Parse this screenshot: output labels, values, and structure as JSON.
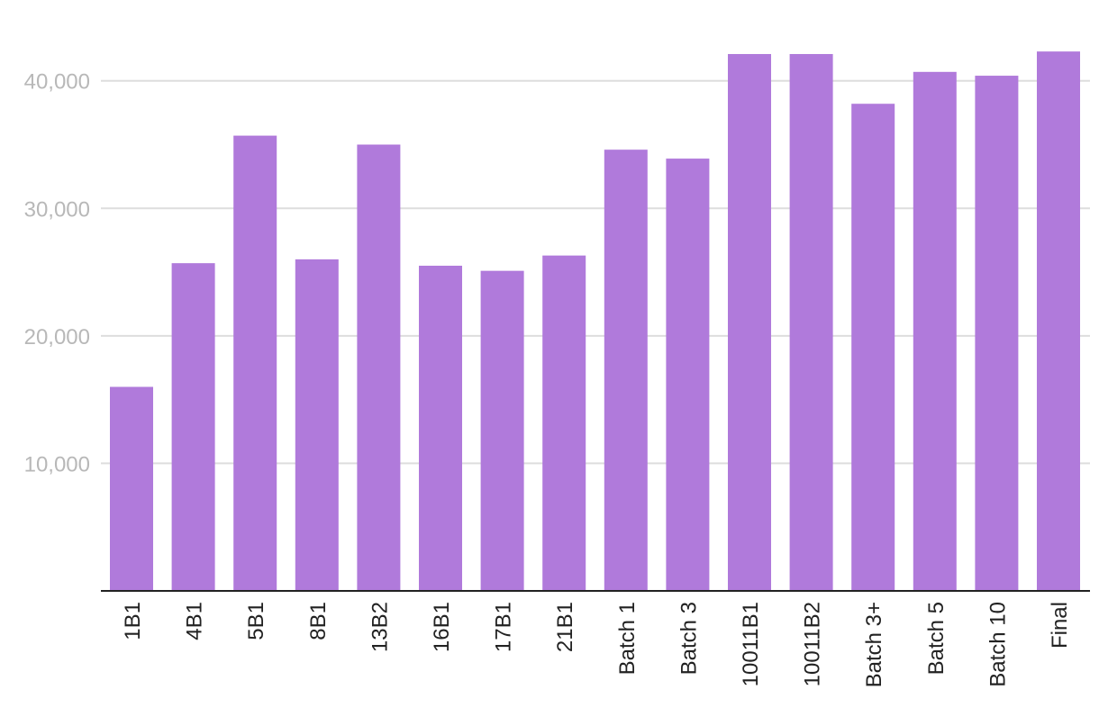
{
  "chart_data": {
    "type": "bar",
    "title": "",
    "xlabel": "",
    "ylabel": "",
    "categories": [
      "1B1",
      "4B1",
      "5B1",
      "8B1",
      "13B2",
      "16B1",
      "17B1",
      "21B1",
      "Batch 1",
      "Batch 3",
      "10011B1",
      "10011B2",
      "Batch 3+",
      "Batch 5",
      "Batch 10",
      "Final"
    ],
    "values": [
      16000,
      25700,
      35700,
      26000,
      35000,
      25500,
      25100,
      26300,
      34600,
      33900,
      42100,
      42100,
      38200,
      40700,
      40400,
      42300
    ],
    "ylim": [
      0,
      43300
    ],
    "yticks": [
      10000,
      20000,
      30000,
      40000
    ],
    "ytick_labels": [
      "10,000",
      "20,000",
      "30,000",
      "40,000"
    ],
    "grid": true,
    "legend": "none",
    "colors": {
      "bar": "#b07adb",
      "grid": "#dddddd",
      "axis": "#222222",
      "tick_label": "#b8b8b8",
      "category_label": "#222222"
    }
  }
}
